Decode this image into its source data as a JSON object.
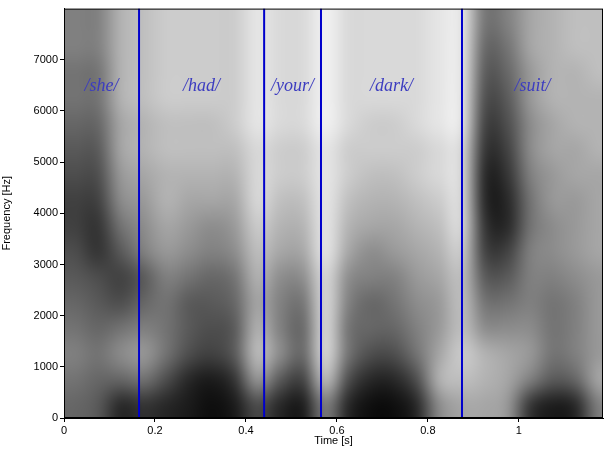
{
  "chart_data": {
    "type": "heatmap",
    "x_label": "Time [s]",
    "y_label": "Frequency [Hz]",
    "xlim": [
      0,
      1.185
    ],
    "ylim": [
      0,
      8000
    ],
    "xticks": [
      0,
      0.2,
      0.4,
      0.6,
      0.8,
      1
    ],
    "yticks": [
      0,
      1000,
      2000,
      3000,
      4000,
      5000,
      6000,
      7000
    ],
    "grid": false,
    "cells": {
      "color": "#000000",
      "range": [
        0,
        100
      ],
      "x_edges": [
        0,
        0.05,
        0.1,
        0.15,
        0.2,
        0.25,
        0.3,
        0.35,
        0.4,
        0.45,
        0.5,
        0.55,
        0.6,
        0.65,
        0.7,
        0.75,
        0.8,
        0.85,
        0.9,
        0.95,
        1.0,
        1.05,
        1.1,
        1.15,
        1.2
      ],
      "y_edges": [
        0,
        500,
        1000,
        1500,
        2000,
        2500,
        3000,
        3500,
        4000,
        4500,
        5000,
        5500,
        6000,
        6500,
        7000,
        7500,
        8000
      ],
      "values": [
        [
          60,
          55,
          50,
          55,
          60,
          65,
          70,
          75,
          75,
          70,
          65,
          60,
          55,
          55,
          50,
          50
        ],
        [
          65,
          60,
          55,
          60,
          65,
          70,
          80,
          80,
          75,
          70,
          65,
          60,
          55,
          55,
          50,
          50
        ],
        [
          85,
          60,
          45,
          55,
          70,
          75,
          65,
          55,
          45,
          40,
          35,
          35,
          30,
          30,
          30,
          30
        ],
        [
          80,
          55,
          40,
          50,
          60,
          65,
          50,
          45,
          40,
          35,
          30,
          30,
          25,
          25,
          25,
          25
        ],
        [
          85,
          70,
          55,
          55,
          55,
          50,
          40,
          35,
          30,
          30,
          25,
          25,
          20,
          20,
          20,
          20
        ],
        [
          90,
          85,
          70,
          65,
          65,
          55,
          45,
          40,
          35,
          30,
          25,
          25,
          20,
          20,
          20,
          20
        ],
        [
          95,
          90,
          75,
          70,
          65,
          60,
          50,
          45,
          35,
          30,
          25,
          25,
          20,
          20,
          20,
          20
        ],
        [
          90,
          80,
          65,
          65,
          60,
          55,
          45,
          40,
          35,
          30,
          25,
          20,
          20,
          20,
          20,
          20
        ],
        [
          70,
          40,
          25,
          30,
          35,
          30,
          25,
          20,
          15,
          15,
          15,
          10,
          10,
          10,
          10,
          10
        ],
        [
          85,
          65,
          45,
          50,
          50,
          45,
          35,
          30,
          25,
          20,
          20,
          15,
          15,
          15,
          15,
          15
        ],
        [
          90,
          75,
          60,
          60,
          55,
          45,
          35,
          30,
          25,
          20,
          20,
          15,
          15,
          15,
          15,
          15
        ],
        [
          50,
          25,
          15,
          15,
          15,
          15,
          10,
          10,
          10,
          10,
          10,
          5,
          5,
          5,
          5,
          5
        ],
        [
          85,
          70,
          55,
          55,
          50,
          45,
          35,
          30,
          25,
          20,
          20,
          15,
          15,
          15,
          15,
          15
        ],
        [
          95,
          85,
          70,
          60,
          60,
          50,
          45,
          35,
          30,
          25,
          20,
          20,
          15,
          15,
          15,
          15
        ],
        [
          95,
          85,
          70,
          60,
          55,
          50,
          40,
          35,
          30,
          25,
          20,
          20,
          15,
          15,
          15,
          15
        ],
        [
          85,
          70,
          55,
          50,
          45,
          40,
          35,
          30,
          25,
          20,
          20,
          15,
          15,
          15,
          15,
          15
        ],
        [
          45,
          30,
          35,
          40,
          40,
          35,
          30,
          25,
          20,
          15,
          15,
          10,
          10,
          10,
          10,
          10
        ],
        [
          35,
          25,
          20,
          25,
          25,
          25,
          20,
          15,
          15,
          15,
          15,
          10,
          10,
          10,
          10,
          10
        ],
        [
          35,
          30,
          30,
          45,
          55,
          65,
          75,
          80,
          85,
          85,
          80,
          75,
          70,
          65,
          60,
          55
        ],
        [
          40,
          35,
          35,
          45,
          55,
          65,
          75,
          85,
          85,
          80,
          75,
          70,
          65,
          60,
          55,
          50
        ],
        [
          80,
          50,
          40,
          45,
          50,
          50,
          50,
          55,
          55,
          50,
          45,
          45,
          40,
          40,
          35,
          35
        ],
        [
          90,
          65,
          55,
          55,
          55,
          50,
          45,
          45,
          40,
          40,
          35,
          35,
          30,
          30,
          30,
          30
        ],
        [
          85,
          60,
          50,
          50,
          50,
          45,
          40,
          40,
          40,
          35,
          35,
          30,
          30,
          30,
          25,
          25
        ],
        [
          50,
          35,
          40,
          40,
          40,
          40,
          35,
          35,
          35,
          35,
          30,
          30,
          30,
          25,
          25,
          25
        ]
      ]
    },
    "boundaries": {
      "values": [
        0.165,
        0.44,
        0.565,
        0.875
      ],
      "color": "#0000cc"
    },
    "annotations": {
      "texts": [
        "/she/",
        "/had/",
        "/your/",
        "/dark/",
        "/suit/"
      ],
      "color": "#3c3cc0"
    }
  }
}
